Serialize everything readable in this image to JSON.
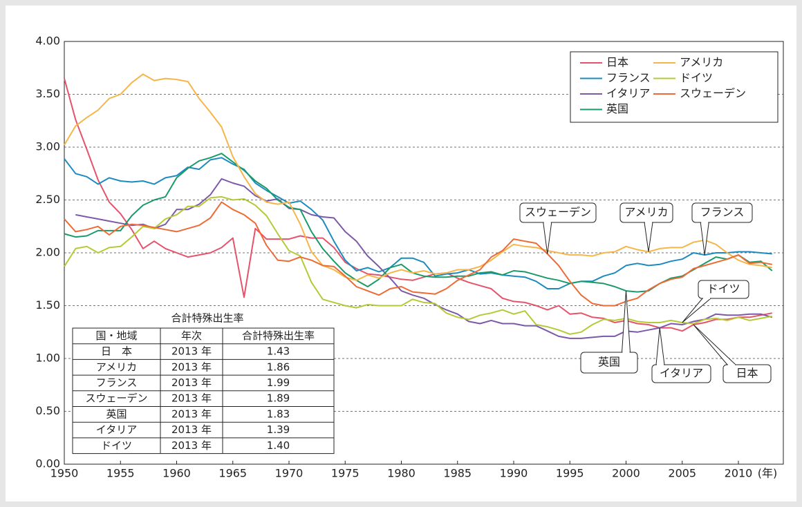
{
  "chart_data": {
    "type": "line",
    "x_axis_label": "(年)",
    "x": [
      1950,
      1951,
      1952,
      1953,
      1954,
      1955,
      1956,
      1957,
      1958,
      1959,
      1960,
      1961,
      1962,
      1963,
      1964,
      1965,
      1966,
      1967,
      1968,
      1969,
      1970,
      1971,
      1972,
      1973,
      1974,
      1975,
      1976,
      1977,
      1978,
      1979,
      1980,
      1981,
      1982,
      1983,
      1984,
      1985,
      1986,
      1987,
      1988,
      1989,
      1990,
      1991,
      1992,
      1993,
      1994,
      1995,
      1996,
      1997,
      1998,
      1999,
      2000,
      2001,
      2002,
      2003,
      2004,
      2005,
      2006,
      2007,
      2008,
      2009,
      2010,
      2011,
      2012,
      2013
    ],
    "xlim": [
      1950,
      2014
    ],
    "xticks": [
      1950,
      1955,
      1960,
      1965,
      1970,
      1975,
      1980,
      1985,
      1990,
      1995,
      2000,
      2005,
      2010
    ],
    "ylim": [
      0,
      4
    ],
    "yticks": [
      {
        "value": 0,
        "label": "0.00"
      },
      {
        "value": 0.5,
        "label": "0.50"
      },
      {
        "value": 1,
        "label": "1.00"
      },
      {
        "value": 1.5,
        "label": "1.50"
      },
      {
        "value": 2,
        "label": "2.00"
      },
      {
        "value": 2.5,
        "label": "2.50"
      },
      {
        "value": 3,
        "label": "3.00"
      },
      {
        "value": 3.5,
        "label": "3.50"
      },
      {
        "value": 4,
        "label": "4.00"
      }
    ],
    "grid": true,
    "legend_position": "upper right",
    "series": [
      {
        "name": "日本",
        "color": "#e5526a",
        "values": [
          3.65,
          3.26,
          2.98,
          2.69,
          2.48,
          2.37,
          2.22,
          2.04,
          2.11,
          2.04,
          2.0,
          1.96,
          1.98,
          2.0,
          2.05,
          2.14,
          1.58,
          2.23,
          2.13,
          2.13,
          2.13,
          2.16,
          2.14,
          2.14,
          2.05,
          1.91,
          1.85,
          1.8,
          1.79,
          1.77,
          1.75,
          1.74,
          1.77,
          1.8,
          1.81,
          1.76,
          1.72,
          1.69,
          1.66,
          1.57,
          1.54,
          1.53,
          1.5,
          1.46,
          1.5,
          1.42,
          1.43,
          1.39,
          1.38,
          1.34,
          1.36,
          1.33,
          1.32,
          1.29,
          1.29,
          1.26,
          1.32,
          1.34,
          1.37,
          1.37,
          1.39,
          1.39,
          1.41,
          1.43
        ]
      },
      {
        "name": "フランス",
        "color": "#1b8ac0",
        "values": [
          2.89,
          2.75,
          2.72,
          2.65,
          2.71,
          2.68,
          2.67,
          2.68,
          2.65,
          2.71,
          2.73,
          2.81,
          2.79,
          2.88,
          2.9,
          2.84,
          2.79,
          2.66,
          2.59,
          2.53,
          2.47,
          2.49,
          2.41,
          2.31,
          2.11,
          1.93,
          1.83,
          1.86,
          1.82,
          1.86,
          1.95,
          1.95,
          1.91,
          1.78,
          1.8,
          1.81,
          1.84,
          1.8,
          1.81,
          1.79,
          1.78,
          1.77,
          1.73,
          1.66,
          1.66,
          1.71,
          1.73,
          1.73,
          1.78,
          1.81,
          1.88,
          1.9,
          1.88,
          1.89,
          1.92,
          1.94,
          2.0,
          1.98,
          2.0,
          2.0,
          2.01,
          2.01,
          2.0,
          1.99
        ]
      },
      {
        "name": "イタリア",
        "color": "#7b58a8",
        "values": [
          null,
          2.36,
          2.34,
          2.32,
          2.3,
          2.28,
          2.26,
          2.27,
          2.23,
          2.27,
          2.41,
          2.41,
          2.46,
          2.55,
          2.7,
          2.66,
          2.63,
          2.54,
          2.49,
          2.51,
          2.42,
          2.41,
          2.36,
          2.34,
          2.33,
          2.2,
          2.11,
          1.97,
          1.87,
          1.76,
          1.64,
          1.6,
          1.57,
          1.51,
          1.46,
          1.42,
          1.35,
          1.33,
          1.36,
          1.33,
          1.33,
          1.31,
          1.31,
          1.26,
          1.21,
          1.19,
          1.19,
          1.2,
          1.21,
          1.21,
          1.26,
          1.25,
          1.27,
          1.29,
          1.33,
          1.32,
          1.35,
          1.37,
          1.42,
          1.41,
          1.41,
          1.42,
          1.42,
          1.39
        ]
      },
      {
        "name": "英国",
        "color": "#1a9a68",
        "values": [
          2.18,
          2.15,
          2.16,
          2.21,
          2.21,
          2.21,
          2.35,
          2.45,
          2.5,
          2.53,
          2.71,
          2.8,
          2.87,
          2.9,
          2.94,
          2.86,
          2.78,
          2.68,
          2.61,
          2.5,
          2.43,
          2.41,
          2.2,
          2.04,
          1.92,
          1.81,
          1.74,
          1.68,
          1.75,
          1.86,
          1.89,
          1.81,
          1.78,
          1.77,
          1.77,
          1.78,
          1.78,
          1.81,
          1.82,
          1.79,
          1.83,
          1.82,
          1.79,
          1.76,
          1.74,
          1.71,
          1.73,
          1.72,
          1.71,
          1.68,
          1.64,
          1.63,
          1.64,
          1.71,
          1.76,
          1.78,
          1.84,
          1.9,
          1.96,
          1.94,
          1.98,
          1.91,
          1.92,
          1.83
        ]
      },
      {
        "name": "アメリカ",
        "color": "#f6b548",
        "values": [
          3.02,
          3.2,
          3.28,
          3.35,
          3.46,
          3.5,
          3.61,
          3.69,
          3.63,
          3.65,
          3.64,
          3.62,
          3.46,
          3.33,
          3.19,
          2.91,
          2.72,
          2.56,
          2.48,
          2.46,
          2.48,
          2.27,
          2.01,
          1.88,
          1.84,
          1.77,
          1.74,
          1.79,
          1.76,
          1.81,
          1.84,
          1.81,
          1.83,
          1.8,
          1.81,
          1.84,
          1.84,
          1.87,
          1.93,
          2.01,
          2.08,
          2.06,
          2.05,
          2.02,
          2.0,
          1.98,
          1.98,
          1.97,
          2.0,
          2.01,
          2.06,
          2.03,
          2.01,
          2.04,
          2.05,
          2.05,
          2.1,
          2.12,
          2.08,
          2.0,
          1.93,
          1.89,
          1.88,
          1.86
        ]
      },
      {
        "name": "ドイツ",
        "color": "#b5c935",
        "values": [
          1.87,
          2.04,
          2.06,
          2.0,
          2.05,
          2.06,
          2.15,
          2.25,
          2.23,
          2.32,
          2.36,
          2.44,
          2.44,
          2.52,
          2.53,
          2.5,
          2.51,
          2.45,
          2.35,
          2.18,
          2.02,
          1.97,
          1.72,
          1.56,
          1.53,
          1.5,
          1.48,
          1.51,
          1.5,
          1.5,
          1.5,
          1.56,
          1.53,
          1.52,
          1.43,
          1.39,
          1.37,
          1.41,
          1.43,
          1.46,
          1.42,
          1.45,
          1.32,
          1.3,
          1.27,
          1.23,
          1.25,
          1.32,
          1.37,
          1.36,
          1.38,
          1.35,
          1.34,
          1.34,
          1.36,
          1.34,
          1.33,
          1.37,
          1.38,
          1.36,
          1.39,
          1.36,
          1.38,
          1.4
        ]
      },
      {
        "name": "スウェーデン",
        "color": "#ee6a34",
        "values": [
          2.32,
          2.2,
          2.22,
          2.25,
          2.17,
          2.25,
          2.27,
          2.26,
          2.24,
          2.22,
          2.2,
          2.23,
          2.26,
          2.33,
          2.48,
          2.41,
          2.36,
          2.28,
          2.07,
          1.93,
          1.92,
          1.96,
          1.93,
          1.88,
          1.87,
          1.78,
          1.68,
          1.64,
          1.6,
          1.66,
          1.68,
          1.63,
          1.62,
          1.61,
          1.66,
          1.74,
          1.79,
          1.84,
          1.96,
          2.02,
          2.13,
          2.11,
          2.09,
          1.99,
          1.88,
          1.73,
          1.6,
          1.52,
          1.5,
          1.5,
          1.54,
          1.57,
          1.65,
          1.71,
          1.75,
          1.77,
          1.85,
          1.88,
          1.91,
          1.94,
          1.98,
          1.9,
          1.91,
          1.89
        ]
      }
    ],
    "annotations": [
      {
        "text": "スウェーデン"
      },
      {
        "text": "アメリカ"
      },
      {
        "text": "フランス"
      },
      {
        "text": "ドイツ"
      },
      {
        "text": "英国"
      },
      {
        "text": "イタリア"
      },
      {
        "text": "日本"
      }
    ],
    "table": {
      "title": "合計特殊出生率",
      "header": [
        "国・地域",
        "年次",
        "合計特殊出生率"
      ],
      "rows": [
        [
          "日　本",
          "2013 年",
          "1.43"
        ],
        [
          "アメリカ",
          "2013 年",
          "1.86"
        ],
        [
          "フランス",
          "2013 年",
          "1.99"
        ],
        [
          "スウェーデン",
          "2013 年",
          "1.89"
        ],
        [
          "英国",
          "2013 年",
          "1.83"
        ],
        [
          "イタリア",
          "2013 年",
          "1.39"
        ],
        [
          "ドイツ",
          "2013 年",
          "1.40"
        ]
      ]
    }
  }
}
